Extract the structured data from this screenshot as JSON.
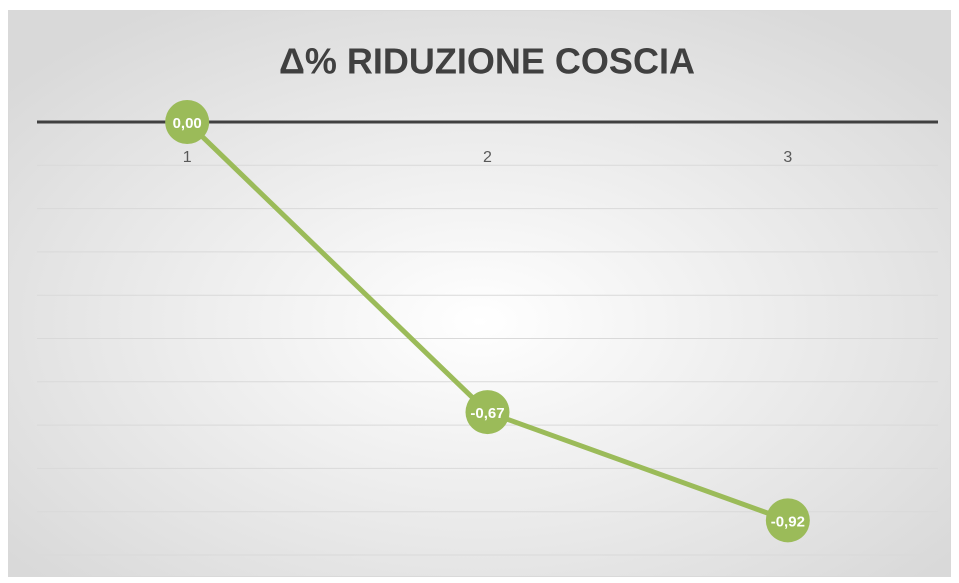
{
  "chart_data": {
    "type": "line",
    "title": "Δ% RIDUZIONE COSCIA",
    "categories": [
      "1",
      "2",
      "3"
    ],
    "values": [
      0,
      -0.67,
      -0.92
    ],
    "value_labels": [
      "0,00",
      "-0,67",
      "-0,92"
    ],
    "color": "#9bbb59",
    "ylim": [
      -1,
      0
    ],
    "yticks": [
      -1,
      -0.9,
      -0.8,
      -0.7,
      -0.6,
      -0.5,
      -0.4,
      -0.3,
      -0.2,
      -0.1,
      0
    ],
    "grid": true
  }
}
